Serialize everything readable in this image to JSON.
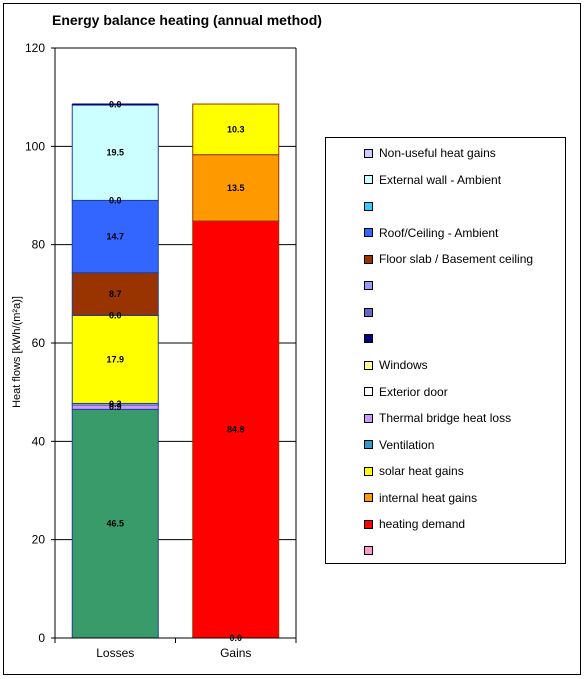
{
  "chart_data": {
    "type": "bar",
    "stacked": true,
    "title": "Energy balance heating (annual method)",
    "ylabel": "Heat flows [kWh/(m²a)]",
    "xlabel": "",
    "ylim": [
      0,
      120
    ],
    "yticks": [
      0,
      20,
      40,
      60,
      80,
      100,
      120
    ],
    "categories": [
      "Losses",
      "Gains"
    ],
    "grid": true,
    "legend_position": "right",
    "series": [
      {
        "name": "",
        "color": "#3a9b6a",
        "values": [
          46.5,
          0
        ]
      },
      {
        "name": "",
        "color": "#cc99ff",
        "values": [
          0.9,
          0
        ]
      },
      {
        "name": "",
        "color": "#ffffff",
        "values": [
          0.3,
          0
        ]
      },
      {
        "name": "",
        "color": "#ffff00",
        "values": [
          17.9,
          0
        ]
      },
      {
        "name": "",
        "color": "#99cc00",
        "values": [
          0.0,
          0
        ]
      },
      {
        "name": "",
        "color": "#993300",
        "values": [
          8.7,
          0
        ]
      },
      {
        "name": "",
        "color": "#3366ff",
        "values": [
          14.7,
          0
        ]
      },
      {
        "name": "",
        "color": "#0000ff",
        "values": [
          0.0,
          0
        ]
      },
      {
        "name": "",
        "color": "#ccffff",
        "values": [
          19.5,
          0
        ]
      },
      {
        "name": "",
        "color": "#000080",
        "values": [
          0.0,
          0
        ]
      },
      {
        "name": "",
        "color": "#ff0000",
        "values": [
          0,
          0.0
        ]
      },
      {
        "name": "",
        "color": "#ff0000",
        "values": [
          0,
          84.8
        ]
      },
      {
        "name": "",
        "color": "#ff9900",
        "values": [
          0,
          13.5
        ]
      },
      {
        "name": "",
        "color": "#ffff00",
        "values": [
          0,
          10.3
        ]
      }
    ],
    "data_labels": [
      {
        "category": 0,
        "value": 46.5,
        "text": "46.5"
      },
      {
        "category": 0,
        "value": 0.9,
        "text": "0.9"
      },
      {
        "category": 0,
        "value": 0.3,
        "text": "0.3"
      },
      {
        "category": 0,
        "value": 17.9,
        "text": "17.9"
      },
      {
        "category": 0,
        "value": 0.0,
        "text": "0.0"
      },
      {
        "category": 0,
        "value": 8.7,
        "text": "8.7"
      },
      {
        "category": 0,
        "value": 14.7,
        "text": "14.7"
      },
      {
        "category": 0,
        "value": 0.0,
        "text": "0.0"
      },
      {
        "category": 0,
        "value": 19.5,
        "text": "19.5"
      },
      {
        "category": 0,
        "value": 0.0,
        "text": "0.0"
      },
      {
        "category": 1,
        "value": 0.0,
        "text": "0.0"
      },
      {
        "category": 1,
        "value": 84.8,
        "text": "84.8"
      },
      {
        "category": 1,
        "value": 13.5,
        "text": "13.5"
      },
      {
        "category": 1,
        "value": 10.3,
        "text": "10.3"
      }
    ]
  },
  "legend": [
    {
      "label": "Non-useful heat gains",
      "color": "#ccccff"
    },
    {
      "label": "External wall - Ambient",
      "color": "#ccffff"
    },
    {
      "label": "",
      "color": "#33ccff"
    },
    {
      "label": "Roof/Ceiling - Ambient",
      "color": "#3366ff"
    },
    {
      "label": "Floor slab / Basement ceiling",
      "color": "#993300"
    },
    {
      "label": "",
      "color": "#9999ff"
    },
    {
      "label": "",
      "color": "#6666cc"
    },
    {
      "label": "",
      "color": "#000080"
    },
    {
      "label": "Windows",
      "color": "#ffff99"
    },
    {
      "label": "Exterior door",
      "color": "#ffffff"
    },
    {
      "label": "Thermal bridge heat loss",
      "color": "#cc99ff"
    },
    {
      "label": "Ventilation",
      "color": "#3399cc"
    },
    {
      "label": "solar heat gains",
      "color": "#ffff00"
    },
    {
      "label": "internal heat gains",
      "color": "#ff9900"
    },
    {
      "label": "heating demand",
      "color": "#ff0000"
    },
    {
      "label": "",
      "color": "#ff99cc"
    }
  ]
}
